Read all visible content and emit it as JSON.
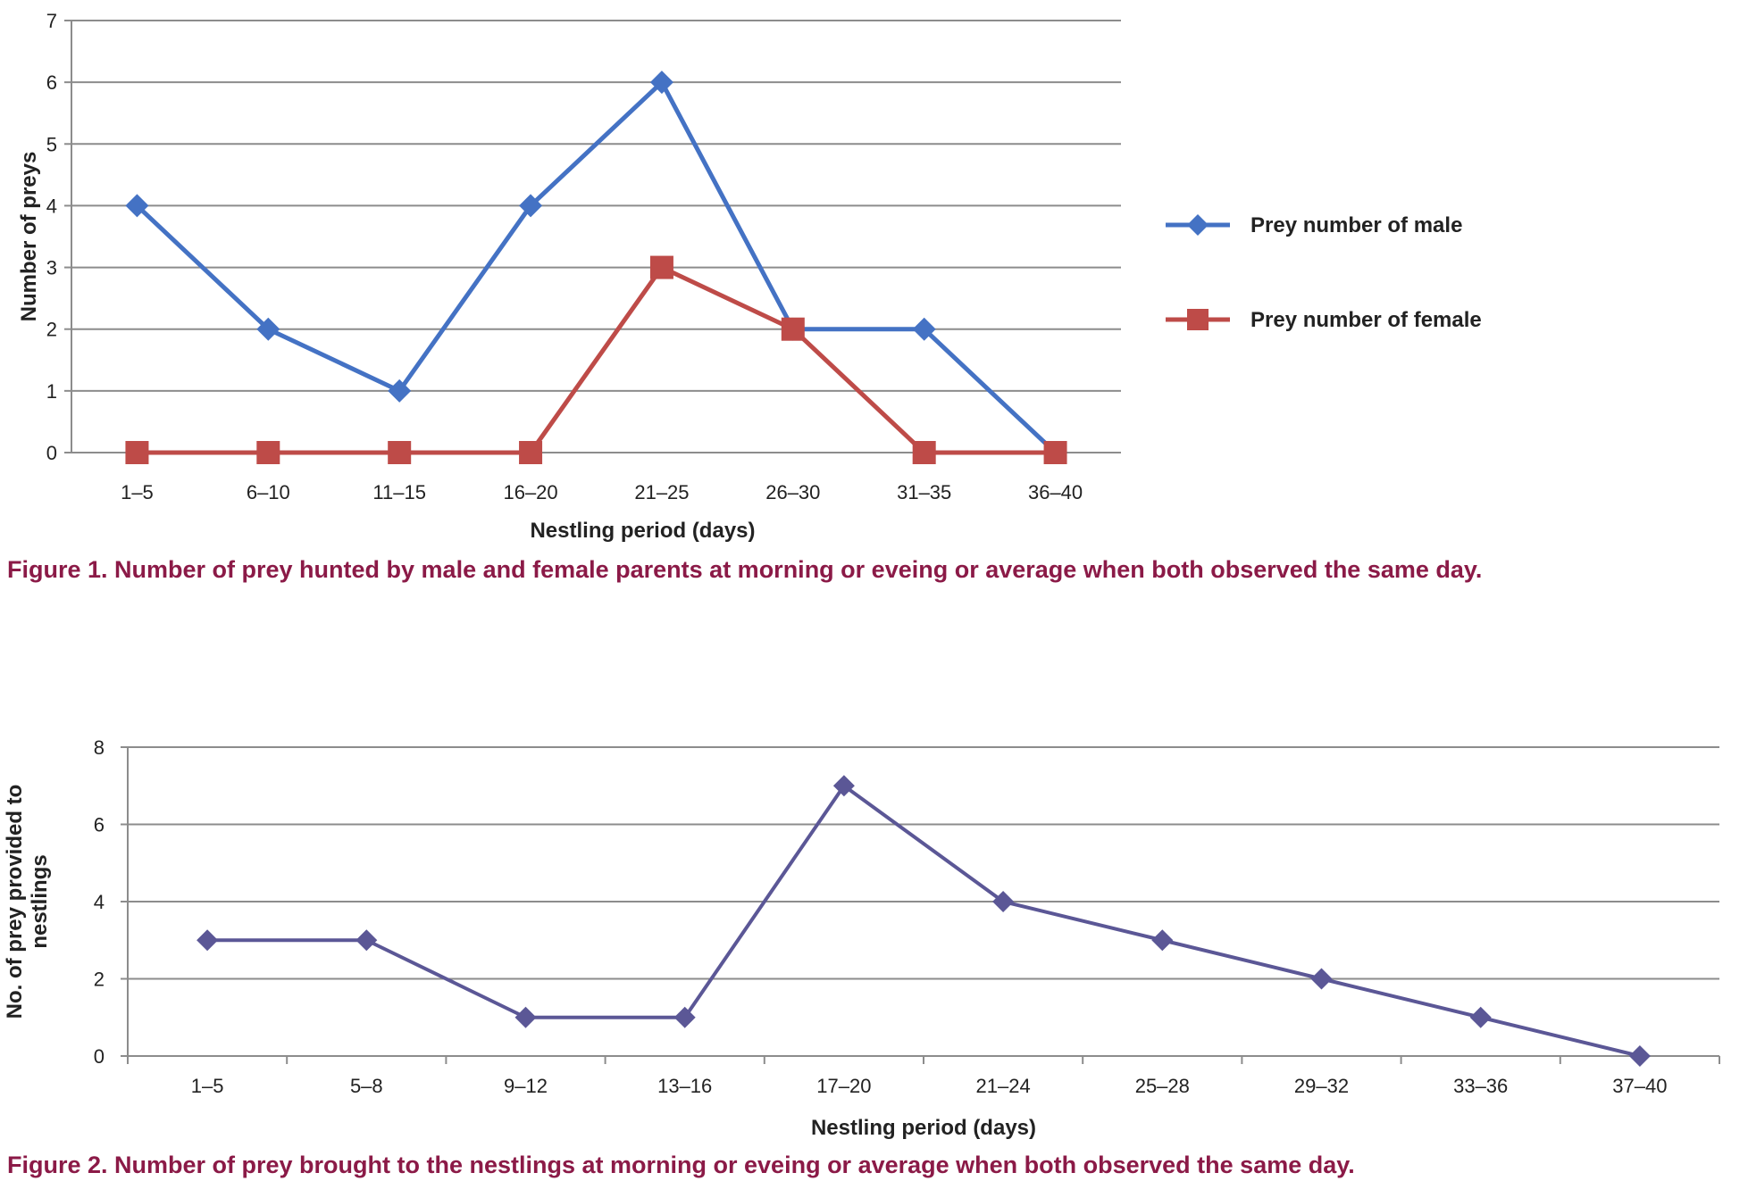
{
  "chart_data": [
    {
      "type": "line",
      "title": "",
      "xlabel": "Nestling period (days)",
      "ylabel": "Number of preys",
      "ylim": [
        0,
        7
      ],
      "yticks": [
        0,
        1,
        2,
        3,
        4,
        5,
        6,
        7
      ],
      "grid": true,
      "legend_position": "right",
      "categories": [
        "1–5",
        "6–10",
        "11–15",
        "16–20",
        "21–25",
        "26–30",
        "31–35",
        "36–40"
      ],
      "series": [
        {
          "name": "Prey number of male",
          "marker": "diamond",
          "color": "#4472c4",
          "values": [
            4,
            2,
            1,
            4,
            6,
            2,
            2,
            0
          ]
        },
        {
          "name": "Prey number of female",
          "marker": "square",
          "color": "#be4b48",
          "values": [
            0,
            0,
            0,
            0,
            3,
            2,
            0,
            0
          ]
        }
      ]
    },
    {
      "type": "line",
      "title": "",
      "xlabel": "Nestling period (days)",
      "ylabel": "No. of prey provided to nestlings",
      "ylabel_lines": [
        "No. of prey provided to",
        "nestlings"
      ],
      "ylim": [
        0,
        8
      ],
      "yticks": [
        0,
        2,
        4,
        6,
        8
      ],
      "grid": true,
      "categories": [
        "1–5",
        "5–8",
        "9–12",
        "13–16",
        "17–20",
        "21–24",
        "25–28",
        "29–32",
        "33–36",
        "37–40"
      ],
      "series": [
        {
          "name": "Prey provided to nestlings",
          "marker": "diamond",
          "color": "#5b5796",
          "values": [
            3,
            3,
            1,
            1,
            7,
            4,
            3,
            2,
            1,
            0
          ]
        }
      ]
    }
  ],
  "captions": {
    "figure1": "Figure 1. Number of prey hunted by male and female parents at morning or eveing or average when both observed the same day.",
    "figure2": "Figure 2. Number of prey brought to the nestlings at morning or eveing or average when both observed the same day."
  }
}
